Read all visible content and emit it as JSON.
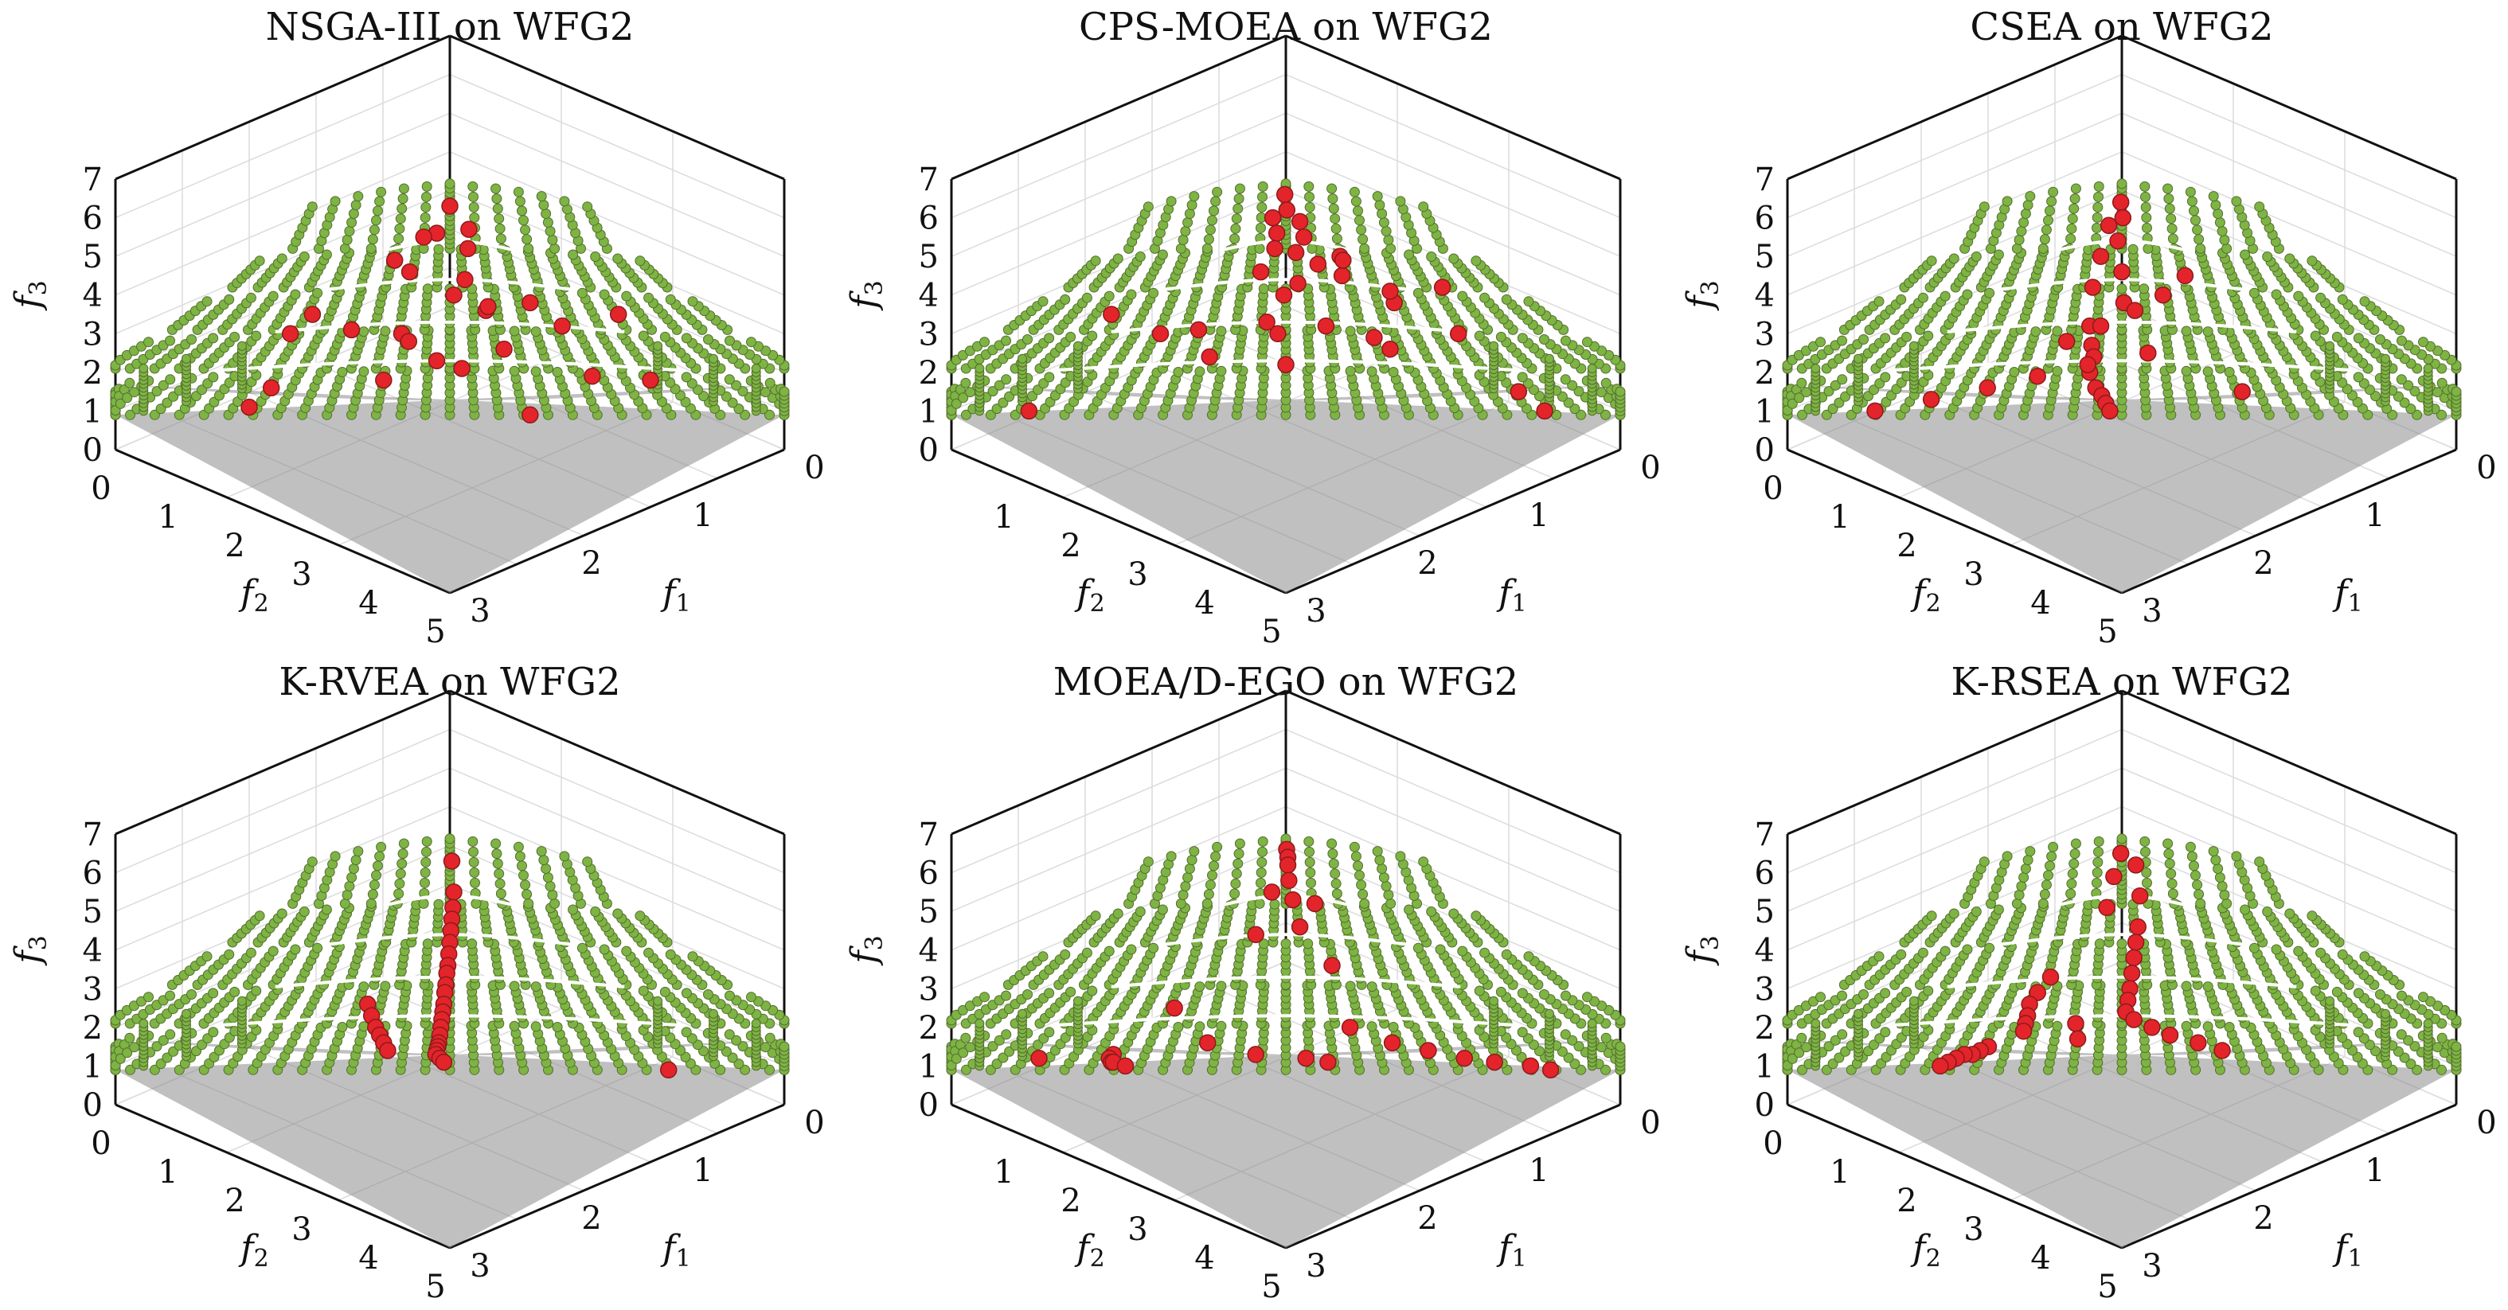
{
  "figure": {
    "colors": {
      "pf_fill": "#7db443",
      "pf_edge": "#556b2f",
      "pf_shade": "#8c8c8c",
      "solution_fill": "#e3242b",
      "solution_edge": "#8b1a1a",
      "grid": "#dcdcdc",
      "axis": "#111111"
    },
    "panels": [
      {
        "title": "NSGA-III on WFG2",
        "xlabel": "f1",
        "ylabel": "f2",
        "zlabel": "f3",
        "xticks": [
          "0",
          "1",
          "2",
          "3"
        ],
        "yticks": [
          "0",
          "1",
          "2",
          "3",
          "4",
          "5"
        ],
        "zticks": [
          "0",
          "1",
          "2",
          "3",
          "4",
          "5",
          "6",
          "7"
        ]
      },
      {
        "title": "CPS-MOEA on WFG2",
        "xlabel": "f1",
        "ylabel": "f2",
        "zlabel": "f3",
        "xticks": [
          "0",
          "1",
          "2",
          "3"
        ],
        "yticks": [
          "1",
          "2",
          "3",
          "4",
          "5"
        ],
        "zticks": [
          "0",
          "1",
          "2",
          "3",
          "4",
          "5",
          "6",
          "7"
        ]
      },
      {
        "title": "CSEA on WFG2",
        "xlabel": "f1",
        "ylabel": "f2",
        "zlabel": "f3",
        "xticks": [
          "0",
          "1",
          "2",
          "3"
        ],
        "yticks": [
          "0",
          "1",
          "2",
          "3",
          "4",
          "5"
        ],
        "zticks": [
          "0",
          "1",
          "2",
          "3",
          "4",
          "5",
          "6",
          "7"
        ]
      },
      {
        "title": "K-RVEA on WFG2",
        "xlabel": "f1",
        "ylabel": "f2",
        "zlabel": "f3",
        "xticks": [
          "0",
          "1",
          "2",
          "3"
        ],
        "yticks": [
          "0",
          "1",
          "2",
          "3",
          "4",
          "5"
        ],
        "zticks": [
          "0",
          "1",
          "2",
          "3",
          "4",
          "5",
          "6",
          "7"
        ]
      },
      {
        "title": "MOEA/D-EGO on WFG2",
        "xlabel": "f1",
        "ylabel": "f2",
        "zlabel": "f3",
        "xticks": [
          "0",
          "1",
          "2",
          "3"
        ],
        "yticks": [
          "1",
          "2",
          "3",
          "4",
          "5"
        ],
        "zticks": [
          "0",
          "1",
          "2",
          "3",
          "4",
          "5",
          "6",
          "7"
        ]
      },
      {
        "title": "K-RSEA on WFG2",
        "xlabel": "f1",
        "ylabel": "f2",
        "zlabel": "f3",
        "xticks": [
          "0",
          "1",
          "2",
          "3"
        ],
        "yticks": [
          "0",
          "1",
          "2",
          "3",
          "4",
          "5"
        ],
        "zticks": [
          "0",
          "1",
          "2",
          "3",
          "4",
          "5",
          "6",
          "7"
        ]
      }
    ]
  },
  "chart_data": [
    {
      "type": "scatter",
      "title": "NSGA-III on WFG2",
      "xlabel": "f1",
      "ylabel": "f2",
      "zlabel": "f3",
      "xlim": [
        0,
        3
      ],
      "ylim": [
        0,
        5
      ],
      "zlim": [
        0,
        7
      ],
      "grid": true,
      "series": [
        {
          "name": "",
          "x": [
            0.03,
            0.25,
            0.05,
            0.3,
            0.1,
            0.45,
            0.2,
            0.7,
            0.35,
            0.9,
            0.6,
            1.1,
            0.85,
            1.4,
            1.6,
            1.25,
            1.5,
            2.1,
            2.2,
            2.3,
            0.15,
            0.55,
            1.0,
            1.8,
            0.4,
            0.5,
            1.2,
            2.0
          ],
          "y": [
            0.05,
            0.1,
            0.3,
            0.2,
            0.6,
            0.5,
            1.0,
            1.1,
            1.5,
            0.9,
            1.8,
            1.2,
            2.1,
            1.0,
            0.8,
            2.3,
            1.6,
            0.7,
            1.3,
            0.5,
            2.9,
            3.2,
            3.3,
            2.8,
            4.0,
            3.8,
            3.1,
            2.0
          ],
          "z": [
            6.3,
            5.7,
            5.6,
            5.2,
            5.5,
            4.4,
            4.6,
            4.0,
            4.9,
            3.6,
            3.0,
            3.7,
            2.8,
            3.8,
            3.2,
            2.3,
            2.6,
            3.5,
            1.9,
            1.8,
            3.0,
            3.5,
            3.1,
            2.1,
            1.1,
            1.6,
            1.8,
            0.9
          ]
        }
      ]
    },
    {
      "type": "scatter",
      "title": "CPS-MOEA on WFG2",
      "xlabel": "f1",
      "ylabel": "f2",
      "zlabel": "f3",
      "xlim": [
        0,
        3
      ],
      "ylim": [
        0,
        5
      ],
      "zlim": [
        0,
        7
      ],
      "grid": true,
      "series": [
        {
          "name": "",
          "x": [
            0.02,
            0.1,
            0.05,
            0.2,
            0.15,
            0.3,
            0.25,
            0.4,
            0.5,
            0.6,
            0.35,
            0.7,
            0.9,
            1.1,
            1.3,
            1.5,
            1.0,
            1.8,
            2.2,
            2.5,
            2.7,
            0.45,
            0.8,
            1.2,
            0.55,
            0.3,
            0.2,
            1.6,
            2.0,
            0.65,
            0.75,
            1.4
          ],
          "y": [
            0.05,
            0.15,
            0.3,
            0.1,
            0.4,
            0.2,
            0.6,
            0.5,
            0.3,
            0.8,
            1.0,
            1.2,
            0.6,
            0.9,
            1.5,
            0.7,
            1.8,
            0.4,
            0.8,
            0.3,
            0.2,
            2.2,
            2.6,
            2.0,
            3.0,
            3.4,
            4.6,
            1.2,
            1.6,
            1.4,
            0.3,
            0.6
          ],
          "z": [
            6.6,
            6.2,
            6.0,
            5.9,
            5.6,
            5.5,
            5.2,
            5.1,
            4.8,
            4.3,
            4.6,
            4.0,
            5.0,
            4.5,
            3.2,
            3.8,
            3.0,
            4.2,
            3.0,
            1.5,
            1.0,
            3.1,
            2.4,
            2.2,
            3.0,
            3.5,
            1.0,
            2.9,
            2.6,
            3.3,
            4.9,
            4.1
          ]
        }
      ]
    },
    {
      "type": "scatter",
      "title": "CSEA on WFG2",
      "xlabel": "f1",
      "ylabel": "f2",
      "zlabel": "f3",
      "xlim": [
        0,
        3
      ],
      "ylim": [
        0,
        5
      ],
      "zlim": [
        0,
        7
      ],
      "grid": true,
      "series": [
        {
          "name": "",
          "x": [
            0.02,
            0.1,
            0.05,
            0.2,
            0.15,
            0.3,
            0.25,
            0.5,
            0.4,
            0.6,
            0.8,
            1.0,
            1.3,
            1.6,
            2.0,
            2.4,
            0.3,
            0.5,
            0.7,
            0.9,
            1.1,
            1.4,
            0.35,
            0.45,
            0.55,
            0.65,
            0.75,
            1.8
          ],
          "y": [
            0.05,
            0.15,
            0.3,
            0.4,
            0.6,
            0.5,
            0.9,
            0.8,
            1.2,
            1.5,
            1.8,
            2.2,
            2.6,
            3.0,
            3.6,
            4.2,
            4.6,
            4.0,
            3.4,
            2.9,
            2.4,
            1.9,
            1.5,
            1.1,
            0.7,
            0.4,
            0.2,
            1.0
          ],
          "z": [
            6.4,
            6.0,
            5.8,
            5.4,
            5.0,
            4.6,
            4.2,
            3.8,
            3.2,
            2.7,
            2.4,
            2.0,
            1.6,
            1.4,
            1.2,
            1.0,
            1.0,
            1.3,
            1.6,
            1.9,
            2.2,
            2.5,
            2.8,
            3.2,
            3.6,
            4.0,
            4.5,
            1.5
          ]
        }
      ]
    },
    {
      "type": "scatter",
      "title": "K-RVEA on WFG2",
      "xlabel": "f1",
      "ylabel": "f2",
      "zlabel": "f3",
      "xlim": [
        0,
        3
      ],
      "ylim": [
        0,
        5
      ],
      "zlim": [
        0,
        7
      ],
      "grid": true,
      "series": [
        {
          "name": "",
          "x": [
            0.05,
            0.1,
            0.15,
            0.2,
            0.25,
            0.3,
            0.35,
            0.4,
            0.45,
            0.5,
            0.55,
            0.6,
            0.65,
            0.7,
            0.75,
            0.8,
            0.85,
            0.9,
            0.95,
            1.0,
            1.1,
            1.2,
            0.5,
            0.6,
            0.7,
            0.8,
            0.9,
            1.0,
            2.3
          ],
          "y": [
            0.05,
            0.1,
            0.2,
            0.3,
            0.4,
            0.5,
            0.6,
            0.7,
            0.8,
            0.9,
            1.0,
            1.1,
            1.2,
            1.3,
            1.4,
            1.5,
            1.6,
            1.7,
            1.8,
            1.9,
            2.0,
            2.1,
            2.2,
            2.3,
            2.4,
            2.5,
            2.6,
            2.7,
            0.2
          ],
          "z": [
            6.3,
            5.5,
            5.1,
            4.8,
            4.5,
            4.2,
            3.9,
            3.6,
            3.4,
            3.1,
            2.9,
            2.6,
            2.4,
            2.2,
            2.0,
            1.8,
            1.6,
            1.5,
            1.4,
            1.3,
            1.2,
            1.1,
            2.6,
            2.3,
            2.0,
            1.8,
            1.6,
            1.4,
            0.9
          ]
        }
      ]
    },
    {
      "type": "scatter",
      "title": "MOEA/D-EGO on WFG2",
      "xlabel": "f1",
      "ylabel": "f2",
      "zlabel": "f3",
      "xlim": [
        0,
        3
      ],
      "ylim": [
        0,
        5
      ],
      "zlim": [
        0,
        7
      ],
      "grid": true,
      "series": [
        {
          "name": "",
          "x": [
            0.02,
            0.05,
            0.08,
            0.15,
            0.1,
            0.25,
            0.35,
            0.5,
            0.3,
            0.7,
            1.0,
            1.3,
            1.6,
            1.9,
            2.2,
            2.5,
            2.7,
            0.2,
            0.4,
            0.6,
            0.8,
            1.1,
            0.45,
            0.9,
            1.5,
            2.0,
            2.4,
            0.3
          ],
          "y": [
            0.02,
            0.05,
            0.1,
            0.2,
            0.4,
            0.3,
            0.1,
            0.6,
            1.0,
            0.4,
            0.6,
            0.4,
            0.3,
            0.2,
            0.2,
            0.1,
            0.1,
            3.2,
            3.6,
            3.9,
            4.2,
            4.5,
            2.6,
            2.8,
            3.0,
            3.0,
            3.3,
            4.6
          ],
          "z": [
            6.6,
            6.4,
            6.2,
            5.8,
            5.5,
            5.3,
            5.2,
            4.6,
            4.4,
            3.6,
            2.0,
            1.6,
            1.4,
            1.2,
            1.1,
            1.0,
            0.9,
            1.3,
            1.2,
            1.1,
            1.1,
            1.0,
            2.5,
            1.6,
            1.3,
            1.2,
            1.1,
            1.2
          ]
        }
      ]
    },
    {
      "type": "scatter",
      "title": "K-RSEA on WFG2",
      "xlabel": "f1",
      "ylabel": "f2",
      "zlabel": "f3",
      "xlim": [
        0,
        3
      ],
      "ylim": [
        0,
        5
      ],
      "zlim": [
        0,
        7
      ],
      "grid": true,
      "series": [
        {
          "name": "",
          "x": [
            0.02,
            0.2,
            0.1,
            0.3,
            0.15,
            0.4,
            0.5,
            0.6,
            0.7,
            0.8,
            0.9,
            1.0,
            1.2,
            1.5,
            1.8,
            2.2,
            2.5,
            0.35,
            0.45,
            0.55,
            0.65,
            0.75,
            0.85,
            0.95,
            1.1,
            1.3,
            0.25,
            0.3,
            0.4,
            0.5,
            0.6,
            0.7
          ],
          "y": [
            0.05,
            0.1,
            0.3,
            0.2,
            0.5,
            0.4,
            0.6,
            0.8,
            1.0,
            1.2,
            1.4,
            1.6,
            1.8,
            2.0,
            2.2,
            2.4,
            2.5,
            2.8,
            3.1,
            3.4,
            3.7,
            4.0,
            4.3,
            4.6,
            2.6,
            2.9,
            1.6,
            1.9,
            2.2,
            2.4,
            2.6,
            2.8
          ],
          "z": [
            6.5,
            6.2,
            5.9,
            5.4,
            5.1,
            4.6,
            4.2,
            3.8,
            3.4,
            3.0,
            2.7,
            2.4,
            2.2,
            2.0,
            1.8,
            1.6,
            1.4,
            1.5,
            1.4,
            1.3,
            1.3,
            1.2,
            1.1,
            1.0,
            2.1,
            1.7,
            3.3,
            2.9,
            2.6,
            2.3,
            2.1,
            1.9
          ]
        }
      ]
    }
  ]
}
